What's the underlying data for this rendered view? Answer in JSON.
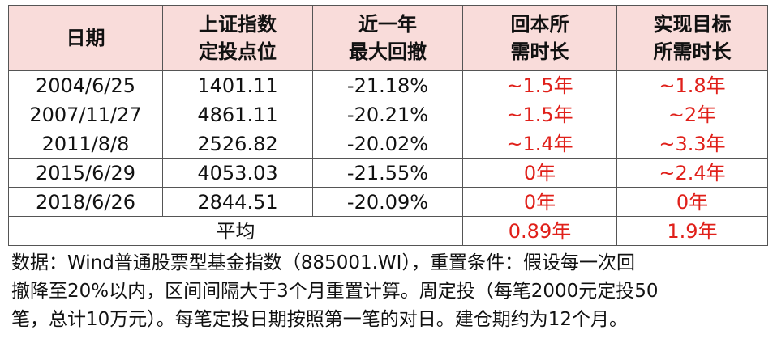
{
  "table": {
    "header": [
      [
        "日期"
      ],
      [
        "上证指数",
        "定投点位"
      ],
      [
        "近一年",
        "最大回撤"
      ],
      [
        "回本所",
        "需时长"
      ],
      [
        "实现目标",
        "所需时长"
      ]
    ],
    "rows": [
      [
        "2004/6/25",
        "1401.11",
        "-21.18%",
        "~1.5年",
        "~1.8年"
      ],
      [
        "2007/11/27",
        "4861.11",
        "-20.21%",
        "~1.5年",
        "~2年"
      ],
      [
        "2011/8/8",
        "2526.82",
        "-20.02%",
        "~1.4年",
        "~3.3年"
      ],
      [
        "2015/6/29",
        "4053.03",
        "-21.55%",
        "0年",
        "~2.4年"
      ],
      [
        "2018/6/26",
        "2844.51",
        "-20.09%",
        "0年",
        "0年"
      ]
    ],
    "average": [
      "平均",
      "0.89年",
      "1.9年"
    ]
  },
  "footnote": [
    "数据：Wind普通股票型基金指数（885001.WI），重置条件：假设每一次回",
    "撤降至20%以内，区间间隔大于3个月重置计算。周定投（每笔2000元定投50",
    "笔，总计10万元）。每笔定投日期按照第一笔的对日。建仓期约为12个月。"
  ]
}
